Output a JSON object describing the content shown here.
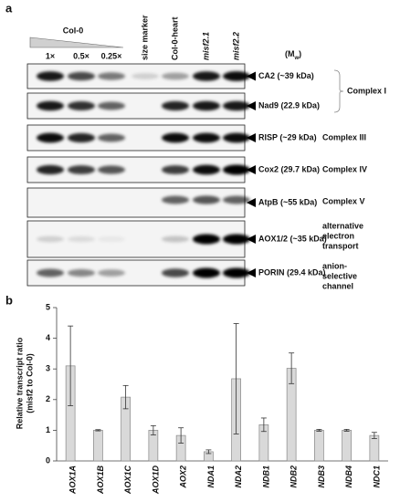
{
  "panel_a": {
    "label": "a",
    "dilution_header": "Col-0",
    "dilution_lanes": [
      "1×",
      "0.5×",
      "0.25×"
    ],
    "lanes": [
      "size marker",
      "Col-0-heart",
      "misf2.1",
      "misf2.2"
    ],
    "mw_label": [
      "(M",
      "w",
      ")"
    ],
    "proteins": [
      "CA2 (~39 kDa)",
      "Nad9 (22.9 kDa)",
      "RISP (~29 kDa)",
      "Cox2 (29.7 kDa)",
      "AtpB (~55 kDa)",
      "AOX1/2 (~35 kDa)",
      "PORIN (29.4 kDa)"
    ],
    "complexes": {
      "complex_i": "Complex I",
      "complex_iii": "Complex III",
      "complex_iv": "Complex IV",
      "complex_v": "Complex V",
      "alternative": [
        "alternative",
        "electron",
        "transport"
      ],
      "anion": [
        "anion-",
        "selective",
        "channel"
      ]
    }
  },
  "chart_data": {
    "type": "bar",
    "panel_label": "b",
    "y_label": [
      "Relative transcript ratio",
      "(misf2 to Col-0)"
    ],
    "categories": [
      "AOX1A",
      "AOX1B",
      "AOX1C",
      "AOX1D",
      "AOX2",
      "NDA1",
      "NDA2",
      "NDB1",
      "NDB2",
      "NDB3",
      "NDB4",
      "NDC1"
    ],
    "values": [
      3.1,
      1.0,
      2.08,
      1.0,
      0.83,
      0.3,
      2.68,
      1.18,
      3.02,
      1.0,
      1.0,
      0.83
    ],
    "errors": [
      1.3,
      0.02,
      0.38,
      0.15,
      0.25,
      0.06,
      1.8,
      0.22,
      0.5,
      0.03,
      0.03,
      0.1
    ],
    "color": "#d9d9d9",
    "ylim": [
      0,
      5
    ],
    "yticks": [
      0,
      1,
      2,
      3,
      4,
      5
    ]
  }
}
